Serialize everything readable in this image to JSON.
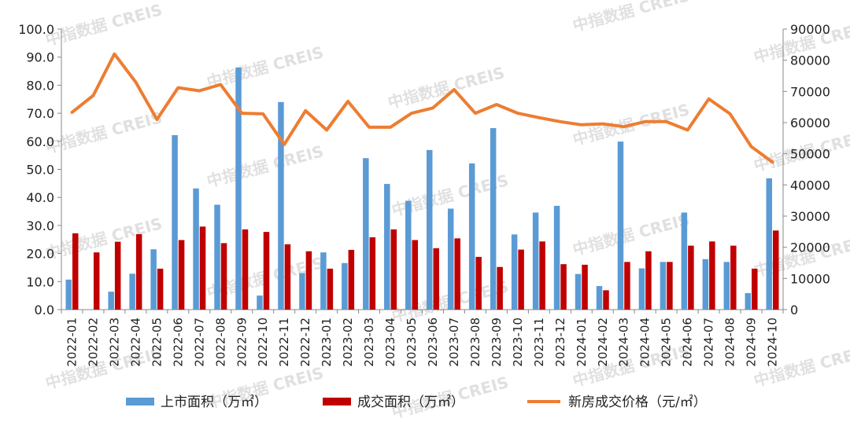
{
  "chart_data": {
    "type": "bar",
    "categories": [
      "2022-01",
      "2022-02",
      "2022-03",
      "2022-04",
      "2022-05",
      "2022-06",
      "2022-07",
      "2022-08",
      "2022-09",
      "2022-10",
      "2022-11",
      "2022-12",
      "2023-01",
      "2023-02",
      "2023-03",
      "2023-04",
      "2023-05",
      "2023-06",
      "2023-07",
      "2023-08",
      "2023-09",
      "2023-10",
      "2023-11",
      "2023-12",
      "2024-01",
      "2024-02",
      "2024-03",
      "2024-04",
      "2024-05",
      "2024-06",
      "2024-07",
      "2024-08",
      "2024-09",
      "2024-10"
    ],
    "series": [
      {
        "name": "上市面积（万㎡）",
        "kind": "bar",
        "axis": "left",
        "color": "#5b9bd5",
        "values": [
          10.7,
          0,
          6.4,
          12.8,
          21.5,
          62.2,
          43.2,
          37.4,
          86.3,
          5.0,
          74.0,
          13.0,
          20.4,
          16.6,
          54.0,
          44.8,
          38.8,
          56.9,
          36.0,
          52.1,
          64.7,
          26.8,
          34.6,
          37.0,
          12.7,
          8.4,
          59.9,
          14.7,
          17.0,
          34.6,
          18.0,
          17.0,
          5.9,
          46.8
        ]
      },
      {
        "name": "成交面积（万㎡）",
        "kind": "bar",
        "axis": "left",
        "color": "#c00000",
        "values": [
          27.2,
          20.4,
          24.2,
          26.9,
          14.6,
          24.8,
          29.6,
          23.7,
          28.6,
          27.7,
          23.3,
          20.8,
          14.6,
          21.3,
          25.8,
          28.6,
          24.8,
          21.9,
          25.4,
          18.8,
          15.2,
          21.4,
          24.3,
          16.2,
          16.0,
          6.9,
          17.0,
          20.8,
          17.0,
          22.8,
          24.3,
          22.8,
          14.6,
          28.2
        ]
      },
      {
        "name": "新房成交价格（元/㎡）",
        "kind": "line",
        "axis": "right",
        "color": "#ed7d31",
        "values": [
          63300,
          68700,
          82000,
          73000,
          61000,
          71200,
          70200,
          72200,
          63000,
          62800,
          53000,
          63800,
          57600,
          66800,
          58500,
          58500,
          63000,
          64700,
          70600,
          63000,
          65800,
          63000,
          61600,
          60300,
          59300,
          59600,
          58700,
          60300,
          60300,
          57600,
          67600,
          62800,
          52300,
          47300
        ]
      }
    ],
    "y_left": {
      "min": 0,
      "max": 100,
      "ticks": [
        "0.0",
        "10.0",
        "20.0",
        "30.0",
        "40.0",
        "50.0",
        "60.0",
        "70.0",
        "80.0",
        "90.0",
        "100.0"
      ]
    },
    "y_right": {
      "min": 0,
      "max": 90000,
      "ticks": [
        "0",
        "10000",
        "20000",
        "30000",
        "40000",
        "50000",
        "60000",
        "70000",
        "80000",
        "90000"
      ]
    },
    "legend_position": "bottom",
    "grid": false,
    "title": ""
  },
  "watermark": {
    "cn": "中指数据",
    "en": "CREIS"
  }
}
